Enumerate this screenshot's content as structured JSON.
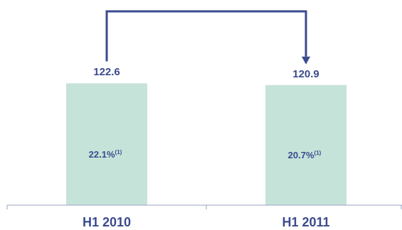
{
  "chart_data": {
    "type": "bar",
    "categories": [
      "H1 2010",
      "H1 2011"
    ],
    "values": [
      122.6,
      120.9
    ],
    "value_labels": [
      "122.6",
      "120.9"
    ],
    "inner_labels": [
      "22.1%",
      "20.7%"
    ],
    "footnote_marker": "(1)",
    "title": "",
    "xlabel": "",
    "ylabel": "",
    "ylim": [
      0,
      140
    ],
    "grid": false,
    "legend": "none",
    "colors": {
      "bar": "#C6E3D9",
      "text": "#3B4A8F",
      "arrow": "#3B4A8F",
      "axis": "#9AA3C4"
    }
  }
}
